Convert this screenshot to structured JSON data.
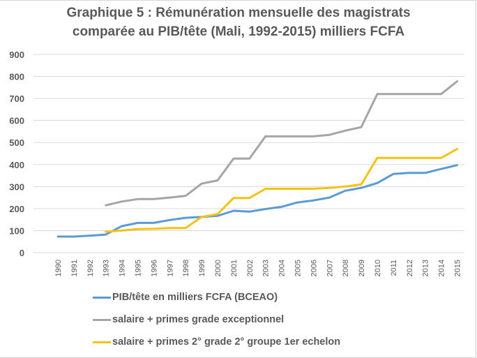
{
  "chart_data": {
    "type": "line",
    "title": "Graphique 5 : Rémunération mensuelle des magistrats",
    "subtitle": "comparée au PIB/tête (Mali, 1992-2015) milliers FCFA",
    "xlabel": "",
    "ylabel": "",
    "ylim": [
      0,
      900
    ],
    "yticks": [
      0,
      100,
      200,
      300,
      400,
      500,
      600,
      700,
      800,
      900
    ],
    "grid": true,
    "legend_position": "bottom",
    "x": [
      "1990",
      "1991",
      "1992",
      "1993",
      "1994",
      "1995",
      "1996",
      "1997",
      "1998",
      "1999",
      "2000",
      "2001",
      "2002",
      "2003",
      "2004",
      "2005",
      "2006",
      "2007",
      "2008",
      "2009",
      "2010",
      "2011",
      "2012",
      "2013",
      "2014",
      "2015"
    ],
    "series": [
      {
        "name": "PIB/tête en milliers FCFA (BCEAO)",
        "color": "#5b9bd5",
        "values": [
          73,
          73,
          77,
          82,
          120,
          135,
          135,
          148,
          158,
          162,
          167,
          190,
          186,
          198,
          208,
          228,
          237,
          250,
          281,
          294,
          316,
          357,
          362,
          362,
          380,
          397
        ]
      },
      {
        "name": "salaire + primes grade exceptionnel",
        "color": "#a5a5a5",
        "values": [
          null,
          null,
          null,
          215,
          232,
          243,
          243,
          250,
          258,
          313,
          328,
          427,
          427,
          528,
          528,
          528,
          528,
          535,
          554,
          570,
          720,
          720,
          720,
          720,
          720,
          778
        ]
      },
      {
        "name": "salaire + primes 2° grade 2° groupe 1er echelon",
        "color": "#f2c314",
        "values": [
          null,
          null,
          null,
          95,
          100,
          107,
          108,
          112,
          112,
          162,
          175,
          248,
          248,
          290,
          290,
          290,
          290,
          294,
          300,
          310,
          430,
          430,
          430,
          430,
          430,
          471
        ]
      }
    ]
  }
}
